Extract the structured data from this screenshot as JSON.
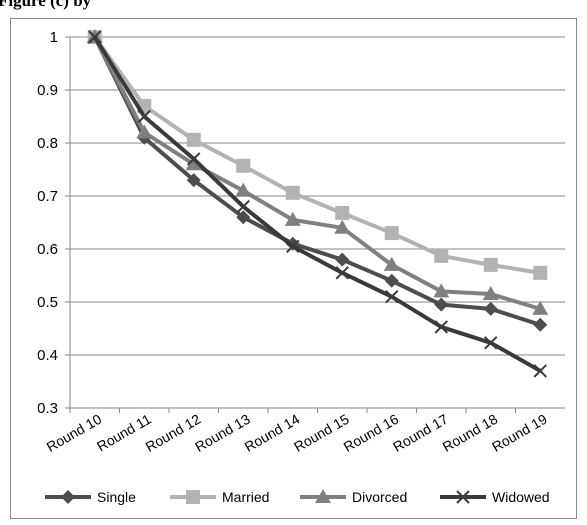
{
  "chart_data": {
    "type": "line",
    "title": "Figure (c) by",
    "categories": [
      "Round 10",
      "Round 11",
      "Round 12",
      "Round 13",
      "Round 14",
      "Round 15",
      "Round 16",
      "Round 17",
      "Round 18",
      "Round 19"
    ],
    "series": [
      {
        "name": "Single",
        "color": "#4d4d4d",
        "marker": "diamond",
        "values": [
          1,
          0.81,
          0.73,
          0.66,
          0.61,
          0.58,
          0.54,
          0.495,
          0.487,
          0.457
        ]
      },
      {
        "name": "Married",
        "color": "#b3b3b3",
        "marker": "square",
        "values": [
          1,
          0.87,
          0.806,
          0.757,
          0.706,
          0.668,
          0.63,
          0.587,
          0.57,
          0.555
        ]
      },
      {
        "name": "Divorced",
        "color": "#808080",
        "marker": "triangle",
        "values": [
          1,
          0.82,
          0.76,
          0.71,
          0.655,
          0.64,
          0.57,
          0.52,
          0.515,
          0.487
        ]
      },
      {
        "name": "Widowed",
        "color": "#3a3a3a",
        "marker": "x",
        "values": [
          1,
          0.85,
          0.77,
          0.68,
          0.605,
          0.555,
          0.51,
          0.453,
          0.423,
          0.37
        ]
      }
    ],
    "ylim": [
      0.3,
      1
    ],
    "yticks": [
      0.3,
      0.4,
      0.5,
      0.6,
      0.7,
      0.8,
      0.9,
      1
    ],
    "grid": true,
    "legend": "bottom"
  }
}
